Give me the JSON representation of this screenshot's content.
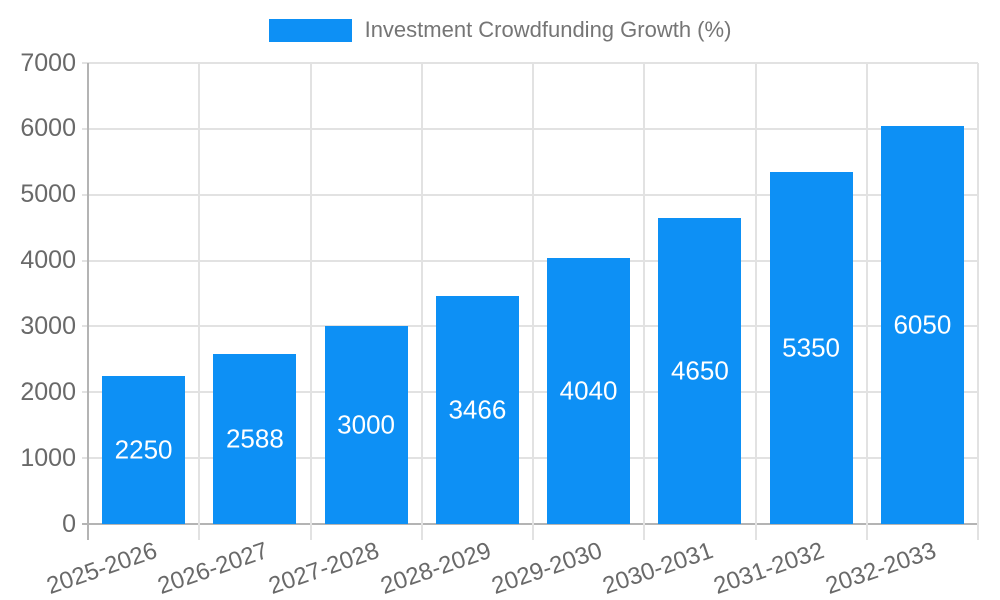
{
  "legend": {
    "label": "Investment Crowdfunding Growth (%)"
  },
  "chart_data": {
    "type": "bar",
    "title": "Investment Crowdfunding Growth (%)",
    "categories": [
      "2025-2026",
      "2026-2027",
      "2027-2028",
      "2028-2029",
      "2029-2030",
      "2030-2031",
      "2031-2032",
      "2032-2033"
    ],
    "values": [
      2250,
      2588,
      3000,
      3466,
      4040,
      4650,
      5350,
      6050
    ],
    "series": [
      {
        "name": "Investment Crowdfunding Growth (%)",
        "values": [
          2250,
          2588,
          3000,
          3466,
          4040,
          4650,
          5350,
          6050
        ]
      }
    ],
    "xlabel": "",
    "ylabel": "",
    "ylim": [
      0,
      7000
    ],
    "yticks": [
      0,
      1000,
      2000,
      3000,
      4000,
      5000,
      6000,
      7000
    ],
    "grid": true,
    "legend_position": "top",
    "value_labels": "inside-center"
  },
  "colors": {
    "bar": "#0d90f5",
    "value_label": "#ffffff",
    "grid": "#e2e2e2",
    "axis": "#b4b4b4",
    "tick_text": "#696969",
    "legend_text": "#757575",
    "background": "#ffffff"
  }
}
